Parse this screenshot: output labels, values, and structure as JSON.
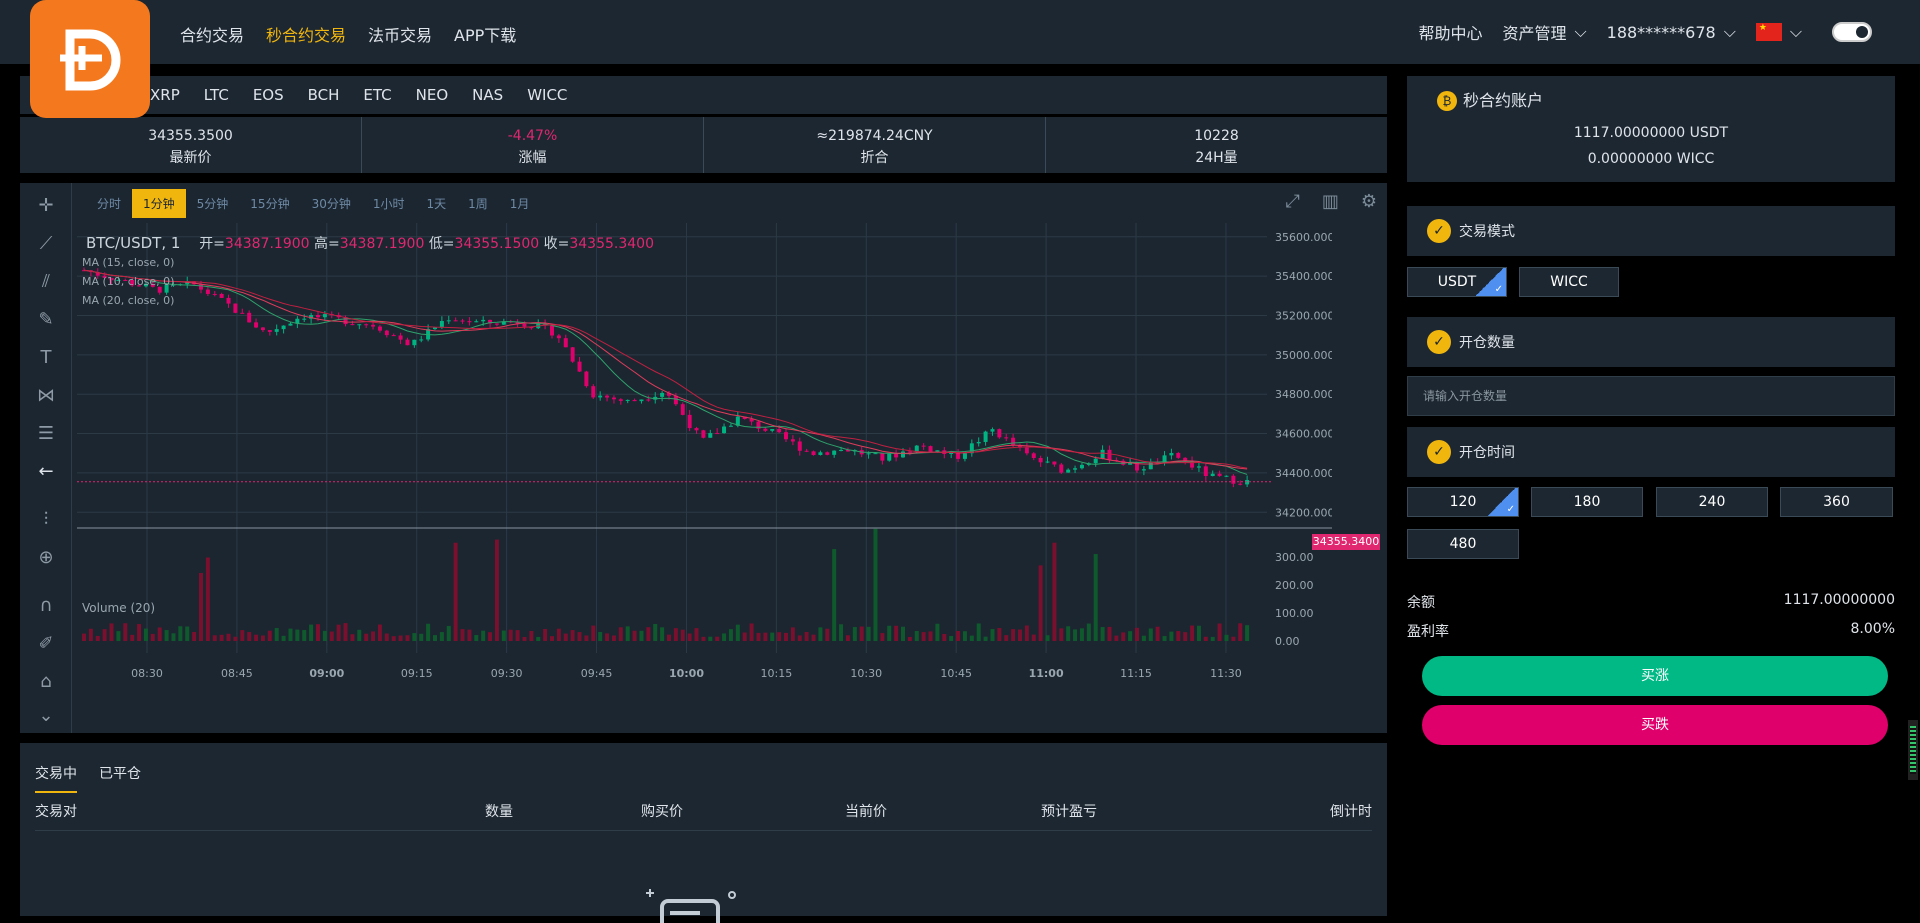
{
  "nav": {
    "menu": [
      "合约交易",
      "秒合约交易",
      "法币交易",
      "APP下载"
    ],
    "active": 1,
    "help": "帮助中心",
    "assets": "资产管理",
    "user": "188******678"
  },
  "coins": [
    "XRP",
    "LTC",
    "EOS",
    "BCH",
    "ETC",
    "NEO",
    "NAS",
    "WICC"
  ],
  "ticker": [
    {
      "v": "34355.3500",
      "l": "最新价"
    },
    {
      "v": "-4.47%",
      "l": "涨幅"
    },
    {
      "v": "≈219874.24CNY",
      "l": "折合"
    },
    {
      "v": "10228",
      "l": "24H量"
    }
  ],
  "timeframes": [
    "分时",
    "1分钟",
    "5分钟",
    "15分钟",
    "30分钟",
    "1小时",
    "1天",
    "1周",
    "1月"
  ],
  "tf_active": 1,
  "legend": {
    "pair": "BTC/USDT, 1",
    "o_label": "开=",
    "o": "34387.1900",
    "h_label": "高=",
    "h": "34387.1900",
    "l_label": "低=",
    "l": "34355.1500",
    "c_label": "收=",
    "c": "34355.3400"
  },
  "ma": [
    "MA (15, close, 0)",
    "MA (10, close, 0)",
    "MA (20, close, 0)"
  ],
  "volume_label": "Volume (20)",
  "price_tag": "34355.3400",
  "chart_data": {
    "type": "candlestick",
    "price_axis": [
      "35600.0000",
      "35400.0000",
      "35200.0000",
      "35000.0000",
      "34800.0000",
      "34600.0000",
      "34400.0000",
      "34200.0000"
    ],
    "volume_axis": [
      "300.00",
      "200.00",
      "100.00",
      "0.00"
    ],
    "time_axis": [
      "08:30",
      "08:45",
      "09:00",
      "09:15",
      "09:30",
      "09:45",
      "10:00",
      "10:15",
      "10:30",
      "10:45",
      "11:00",
      "11:15",
      "11:30"
    ],
    "ylim": [
      34120,
      35670
    ],
    "close_path": [
      35430,
      35380,
      35330,
      35360,
      35250,
      35110,
      35200,
      35180,
      35150,
      35050,
      35190,
      35160,
      35170,
      35110,
      34800,
      34760,
      34820,
      34560,
      34680,
      34600,
      34500,
      34520,
      34470,
      34540,
      34480,
      34620,
      34480,
      34410,
      34500,
      34420,
      34490,
      34380,
      34355
    ]
  },
  "bottom": {
    "tabs": [
      "交易中",
      "已平仓"
    ],
    "cols": [
      "交易对",
      "数量",
      "购买价",
      "当前价",
      "预计盈亏",
      "倒计时"
    ]
  },
  "account": {
    "title": "秒合约账户",
    "usdt": "1117.00000000 USDT",
    "wicc": "0.00000000 WICC"
  },
  "mode": {
    "title": "交易模式",
    "options": [
      "USDT",
      "WICC"
    ]
  },
  "qty": {
    "title": "开仓数量",
    "placeholder": "请输入开仓数量"
  },
  "time": {
    "title": "开仓时间",
    "options": [
      "120",
      "180",
      "240",
      "360",
      "480"
    ]
  },
  "balance": {
    "label": "余额",
    "value": "1117.00000000"
  },
  "rate": {
    "label": "盈利率",
    "value": "8.00%"
  },
  "buy_up": "买涨",
  "buy_down": "买跌",
  "colors": {
    "up": "#00b482",
    "down": "#e0006b",
    "accent": "#f1b60e"
  }
}
